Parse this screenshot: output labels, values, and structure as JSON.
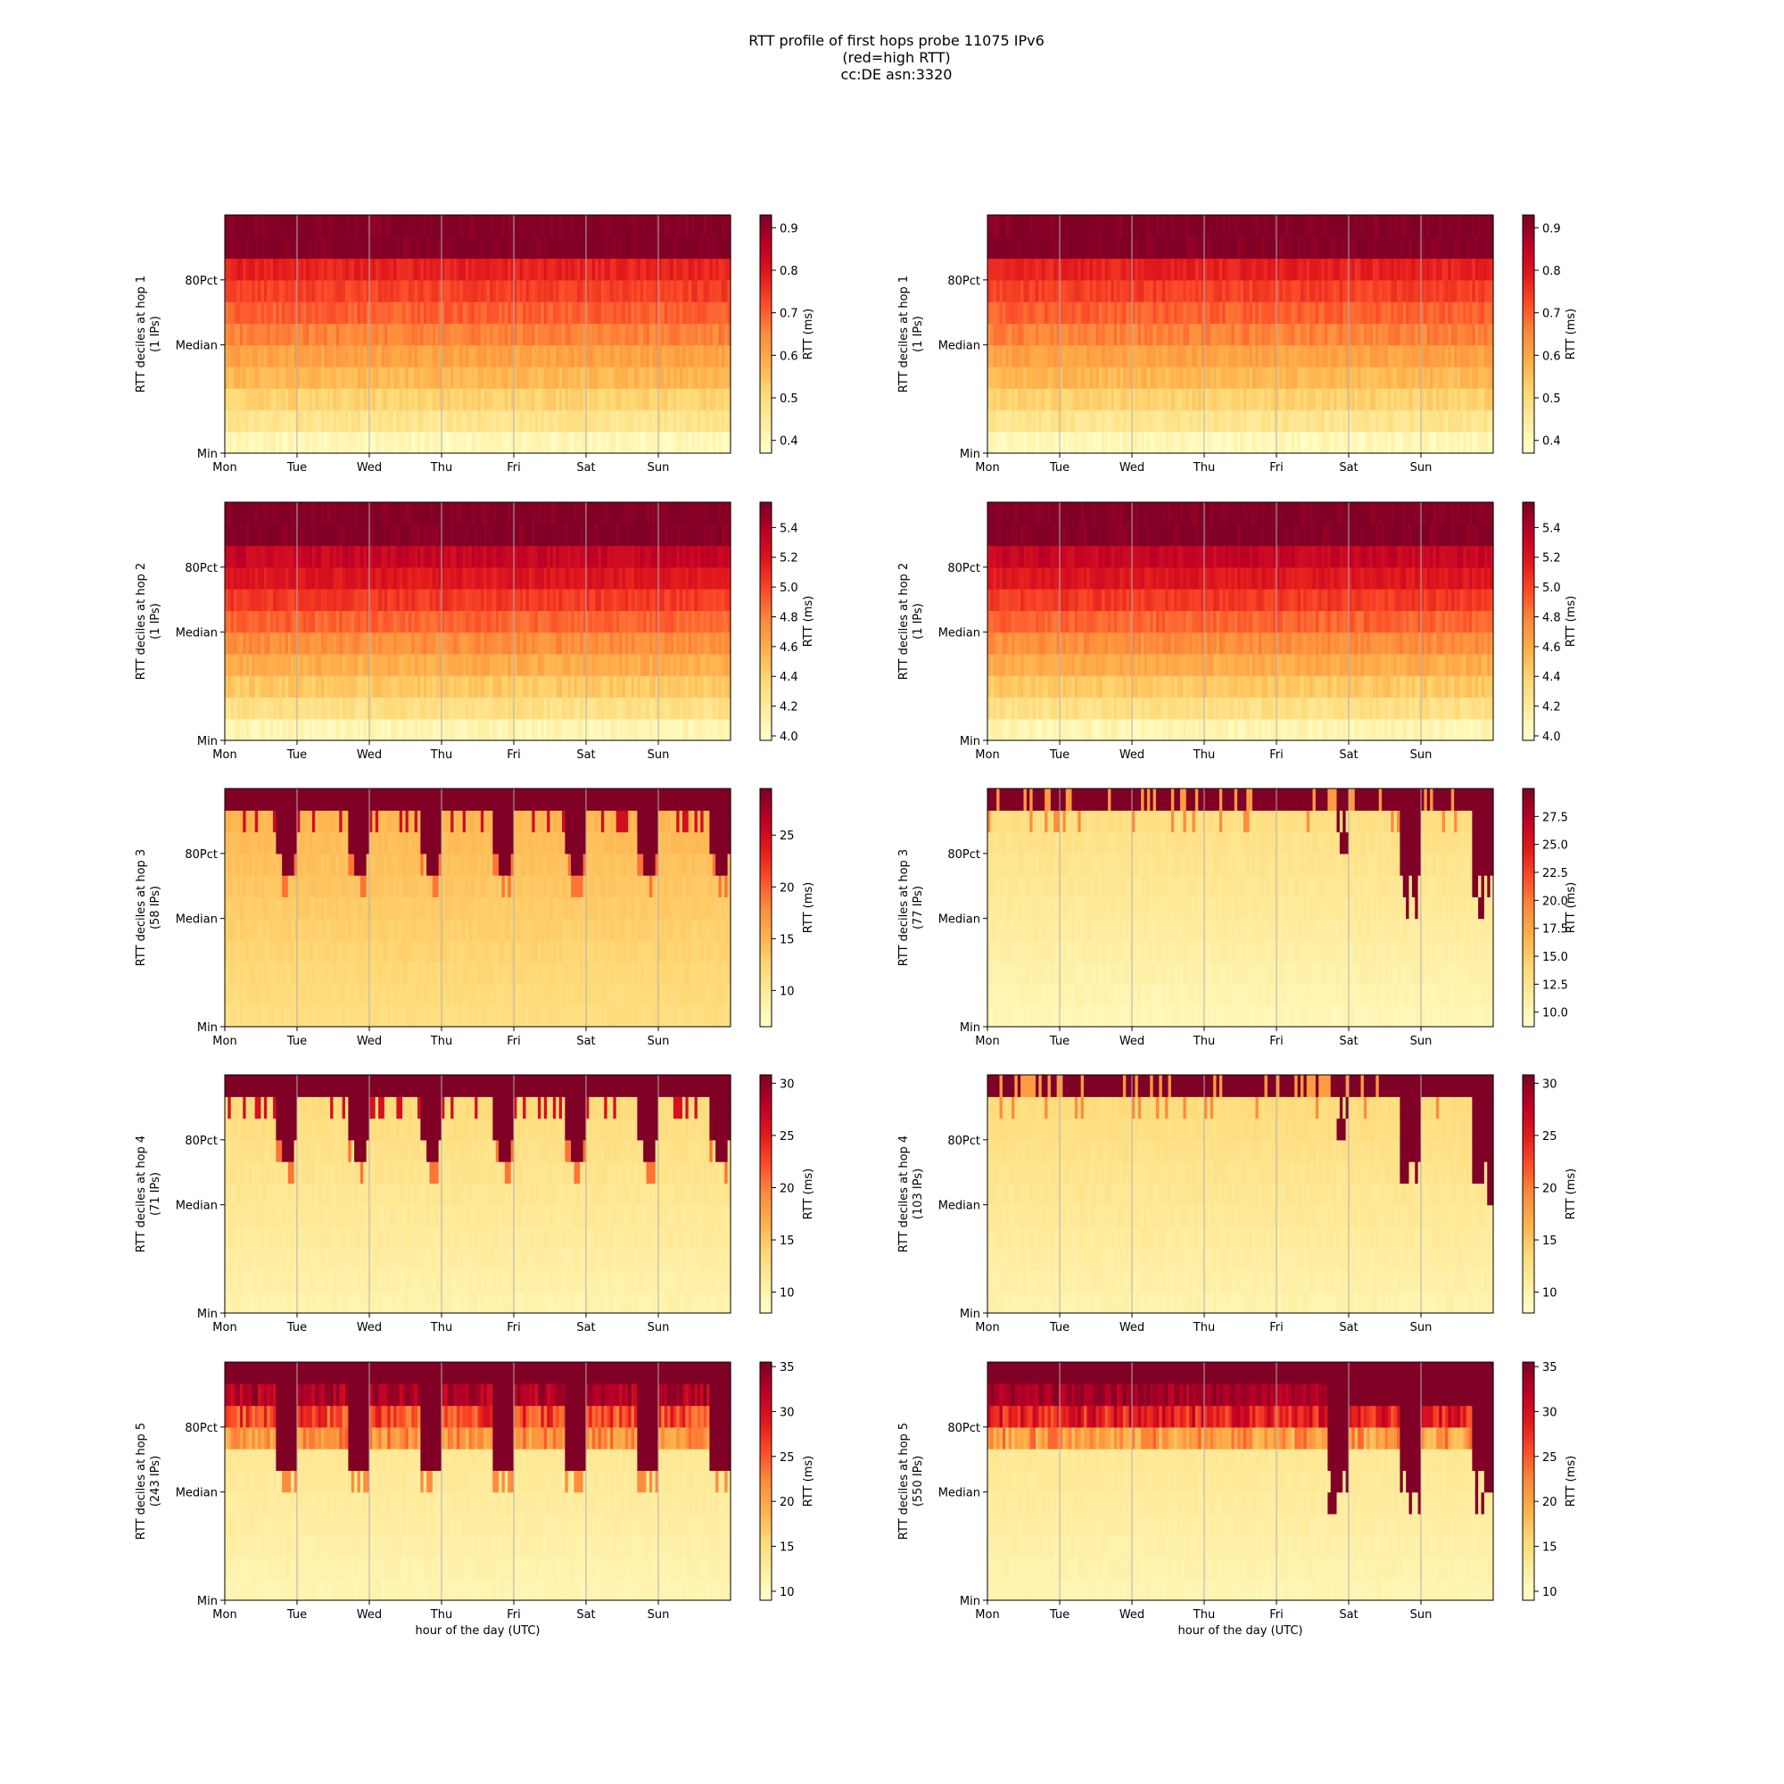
{
  "title_lines": [
    "RTT profile of first hops probe 11075 IPv6",
    "(red=high RTT)",
    "cc:DE asn:3320"
  ],
  "x_tick_labels": [
    "Mon",
    "Tue",
    "Wed",
    "Thu",
    "Fri",
    "Sat",
    "Sun"
  ],
  "x_label": "hour of the day (UTC)",
  "y_tick_labels": [
    "Min",
    "Median",
    "80Pct"
  ],
  "colorbar_label": "RTT (ms)",
  "colormap": [
    "#ffffcc",
    "#ffeda0",
    "#fed976",
    "#feb24c",
    "#fd8d3c",
    "#fc4e2a",
    "#e31a1c",
    "#bd0026",
    "#800026"
  ],
  "chart_data": [
    {
      "type": "heatmap",
      "ylabel_lines": [
        "RTT deciles at hop 1",
        "(1 IPs)"
      ],
      "colorbar_ticks": [
        "0.4",
        "0.5",
        "0.6",
        "0.7",
        "0.8",
        "0.9"
      ],
      "clim": [
        0.37,
        0.93
      ],
      "pattern": "smooth",
      "rows_ms": [
        0.4,
        0.47,
        0.52,
        0.57,
        0.61,
        0.66,
        0.7,
        0.74,
        0.78,
        0.93,
        0.93
      ]
    },
    {
      "type": "heatmap",
      "ylabel_lines": [
        "RTT deciles at hop 1",
        "(1 IPs)"
      ],
      "colorbar_ticks": [
        "0.4",
        "0.5",
        "0.6",
        "0.7",
        "0.8",
        "0.9"
      ],
      "clim": [
        0.37,
        0.93
      ],
      "pattern": "smooth",
      "rows_ms": [
        0.4,
        0.47,
        0.52,
        0.57,
        0.61,
        0.66,
        0.7,
        0.74,
        0.78,
        0.93,
        0.93
      ]
    },
    {
      "type": "heatmap",
      "ylabel_lines": [
        "RTT deciles at hop 2",
        "(1 IPs)"
      ],
      "colorbar_ticks": [
        "4.0",
        "4.2",
        "4.4",
        "4.6",
        "4.8",
        "5.0",
        "5.2",
        "5.4"
      ],
      "clim": [
        3.97,
        5.57
      ],
      "pattern": "smooth",
      "rows_ms": [
        4.08,
        4.3,
        4.45,
        4.6,
        4.75,
        4.9,
        5.05,
        5.2,
        5.32,
        5.57,
        5.57
      ]
    },
    {
      "type": "heatmap",
      "ylabel_lines": [
        "RTT deciles at hop 2",
        "(1 IPs)"
      ],
      "colorbar_ticks": [
        "4.0",
        "4.2",
        "4.4",
        "4.6",
        "4.8",
        "5.0",
        "5.2",
        "5.4"
      ],
      "clim": [
        3.97,
        5.57
      ],
      "pattern": "smooth",
      "rows_ms": [
        4.08,
        4.3,
        4.45,
        4.6,
        4.75,
        4.9,
        5.05,
        5.2,
        5.32,
        5.57,
        5.57
      ]
    },
    {
      "type": "heatmap",
      "ylabel_lines": [
        "RTT deciles at hop 3",
        "(58 IPs)"
      ],
      "colorbar_ticks": [
        "10",
        "15",
        "20",
        "25"
      ],
      "clim": [
        6.5,
        29.5
      ],
      "pattern": "evening",
      "base_ms": 11.5,
      "spike_days": [
        0,
        1,
        2,
        3,
        4,
        5,
        6
      ]
    },
    {
      "type": "heatmap",
      "ylabel_lines": [
        "RTT deciles at hop 3",
        "(77 IPs)"
      ],
      "colorbar_ticks": [
        "10.0",
        "12.5",
        "15.0",
        "17.5",
        "20.0",
        "22.5",
        "25.0",
        "27.5"
      ],
      "clim": [
        8.7,
        30.0
      ],
      "pattern": "weekend",
      "base_ms": 10.0
    },
    {
      "type": "heatmap",
      "ylabel_lines": [
        "RTT deciles at hop 4",
        "(71 IPs)"
      ],
      "colorbar_ticks": [
        "10",
        "15",
        "20",
        "25",
        "30"
      ],
      "clim": [
        8.0,
        30.8
      ],
      "pattern": "evening",
      "base_ms": 10.0,
      "spike_days": [
        0,
        1,
        2,
        3,
        4,
        5,
        6
      ]
    },
    {
      "type": "heatmap",
      "ylabel_lines": [
        "RTT deciles at hop 4",
        "(103 IPs)"
      ],
      "colorbar_ticks": [
        "10",
        "15",
        "20",
        "25",
        "30"
      ],
      "clim": [
        8.0,
        30.8
      ],
      "pattern": "weekend",
      "base_ms": 10.0
    },
    {
      "type": "heatmap",
      "ylabel_lines": [
        "RTT deciles at hop 5",
        "(243 IPs)"
      ],
      "colorbar_ticks": [
        "10",
        "15",
        "20",
        "25",
        "30",
        "35"
      ],
      "clim": [
        9.0,
        35.5
      ],
      "pattern": "busy-evening",
      "base_ms": 11.0
    },
    {
      "type": "heatmap",
      "ylabel_lines": [
        "RTT deciles at hop 5",
        "(550 IPs)"
      ],
      "colorbar_ticks": [
        "10",
        "15",
        "20",
        "25",
        "30",
        "35"
      ],
      "clim": [
        9.0,
        35.5
      ],
      "pattern": "busy-weekend",
      "base_ms": 11.0
    }
  ]
}
